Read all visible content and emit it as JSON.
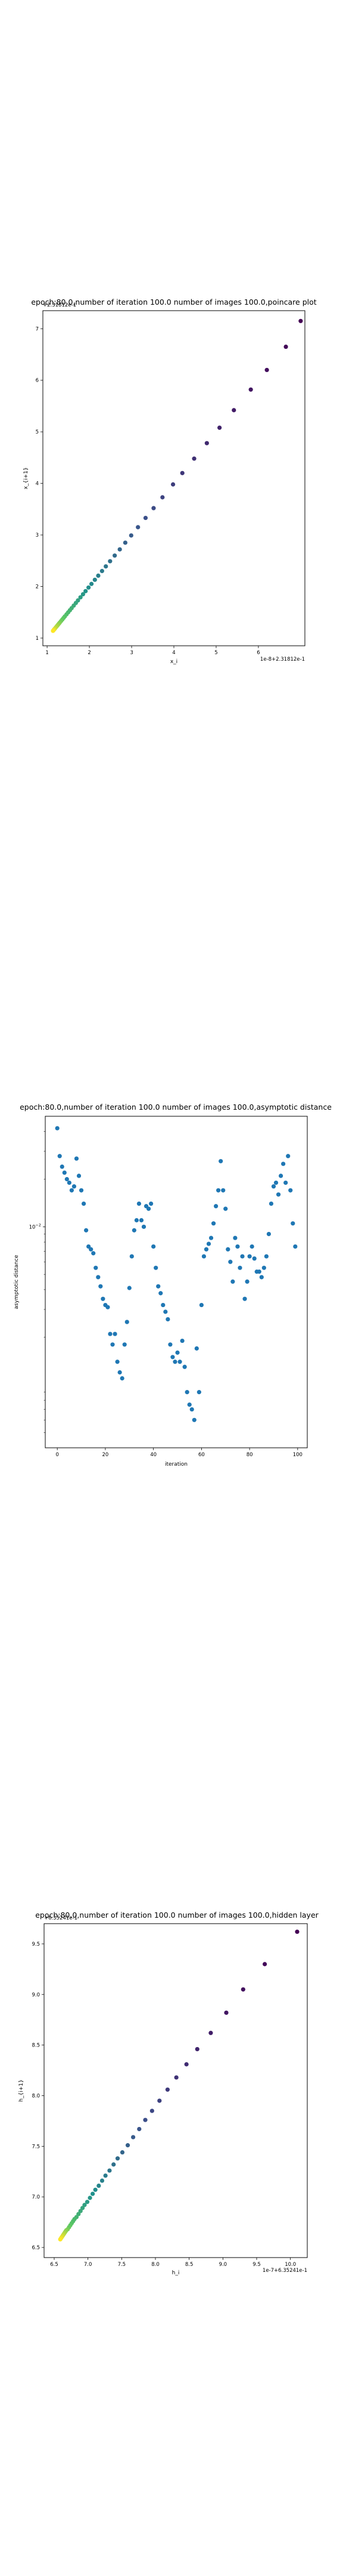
{
  "chart_data": [
    {
      "type": "scatter",
      "title": "epoch:80.0,number of iteration 100.0  number of images 100.0,poincare plot",
      "xlabel": "x_i",
      "ylabel": "x_{i+1}",
      "offset_text": "1e-8+2.31812e-1",
      "corner_text": "+2.31812e-1",
      "xlim": [
        0.9,
        7.1
      ],
      "ylim": [
        0.85,
        7.35
      ],
      "xticks": [
        "1",
        "2",
        "3",
        "4",
        "5",
        "6"
      ],
      "xtick_values": [
        1,
        2,
        3,
        4,
        5,
        6
      ],
      "yticks": [
        "1",
        "2",
        "3",
        "4",
        "5",
        "6",
        "7"
      ],
      "ytick_values": [
        1,
        2,
        3,
        4,
        5,
        6,
        7
      ],
      "colormap": [
        "#440154",
        "#3b528b",
        "#21918c",
        "#5ec962",
        "#fde725"
      ],
      "x": [
        7.0,
        6.65,
        6.2,
        5.82,
        5.42,
        5.08,
        4.78,
        4.48,
        4.2,
        3.98,
        3.73,
        3.52,
        3.33,
        3.15,
        2.99,
        2.85,
        2.72,
        2.6,
        2.49,
        2.39,
        2.3,
        2.21,
        2.13,
        2.05,
        1.98,
        1.91,
        1.85,
        1.79,
        1.73,
        1.68,
        1.63,
        1.58,
        1.54,
        1.5,
        1.46,
        1.42,
        1.39,
        1.36,
        1.33,
        1.3,
        1.28,
        1.26,
        1.24,
        1.22,
        1.2,
        1.18,
        1.17,
        1.16,
        1.15,
        1.14
      ],
      "y": [
        7.15,
        6.65,
        6.2,
        5.82,
        5.42,
        5.08,
        4.78,
        4.48,
        4.2,
        3.98,
        3.73,
        3.52,
        3.33,
        3.15,
        2.99,
        2.85,
        2.72,
        2.6,
        2.49,
        2.39,
        2.3,
        2.21,
        2.13,
        2.05,
        1.98,
        1.91,
        1.85,
        1.79,
        1.73,
        1.68,
        1.63,
        1.58,
        1.54,
        1.5,
        1.46,
        1.42,
        1.39,
        1.36,
        1.33,
        1.3,
        1.28,
        1.26,
        1.24,
        1.22,
        1.2,
        1.18,
        1.17,
        1.16,
        1.15,
        1.14
      ]
    },
    {
      "type": "scatter",
      "title": "epoch:80.0,number of iteration 100.0  number of images 100.0,asymptotic distance",
      "xlabel": "iteration",
      "ylabel": "asymptotic distance",
      "yscale": "log",
      "xlim": [
        -5,
        104
      ],
      "ylim": [
        0.0004,
        0.05
      ],
      "xticks": [
        "0",
        "20",
        "40",
        "60",
        "80",
        "100"
      ],
      "xtick_values": [
        0,
        20,
        40,
        60,
        80,
        100
      ],
      "yticks": [
        "10^{-2}"
      ],
      "ytick_values": [
        0.01
      ],
      "color": "#1f77b4",
      "x": [
        0,
        1,
        2,
        3,
        4,
        5,
        6,
        7,
        8,
        9,
        10,
        11,
        12,
        13,
        14,
        15,
        16,
        17,
        18,
        19,
        20,
        21,
        22,
        23,
        24,
        25,
        26,
        27,
        28,
        29,
        30,
        31,
        32,
        33,
        34,
        35,
        36,
        37,
        38,
        39,
        40,
        41,
        42,
        43,
        44,
        45,
        46,
        47,
        48,
        49,
        50,
        51,
        52,
        53,
        54,
        55,
        56,
        57,
        58,
        59,
        60,
        61,
        62,
        63,
        64,
        65,
        66,
        67,
        68,
        69,
        70,
        71,
        72,
        73,
        74,
        75,
        76,
        77,
        78,
        79,
        80,
        81,
        82,
        83,
        84,
        85,
        86,
        87,
        88,
        89,
        90,
        91,
        92,
        93,
        94,
        95,
        96,
        97,
        98,
        99
      ],
      "y": [
        0.042,
        0.028,
        0.024,
        0.022,
        0.02,
        0.019,
        0.017,
        0.018,
        0.027,
        0.021,
        0.017,
        0.014,
        0.0095,
        0.0075,
        0.0072,
        0.0068,
        0.0055,
        0.0048,
        0.0042,
        0.0035,
        0.0032,
        0.0031,
        0.0021,
        0.0018,
        0.0021,
        0.0014,
        0.0012,
        0.0011,
        0.0018,
        0.0025,
        0.0041,
        0.0065,
        0.0095,
        0.011,
        0.014,
        0.011,
        0.01,
        0.0135,
        0.013,
        0.014,
        0.0075,
        0.0055,
        0.0042,
        0.0038,
        0.0032,
        0.0029,
        0.0026,
        0.0018,
        0.0015,
        0.0014,
        0.0016,
        0.0014,
        0.0019,
        0.0013,
        0.0009,
        0.00075,
        0.0007,
        0.0006,
        0.0017,
        0.0009,
        0.0032,
        0.0065,
        0.0072,
        0.0078,
        0.0085,
        0.0105,
        0.0135,
        0.017,
        0.026,
        0.017,
        0.013,
        0.0072,
        0.006,
        0.0045,
        0.0085,
        0.0075,
        0.0055,
        0.0065,
        0.0035,
        0.0045,
        0.0065,
        0.0075,
        0.0063,
        0.0052,
        0.0052,
        0.0048,
        0.0055,
        0.0065,
        0.009,
        0.014,
        0.018,
        0.019,
        0.016,
        0.021,
        0.025,
        0.019,
        0.028,
        0.017,
        0.0105,
        0.0075
      ]
    },
    {
      "type": "scatter",
      "title": "epoch:80.0,number of iteration 100.0  number of images 100.0,hidden layer",
      "xlabel": "h_i",
      "ylabel": "h_{i+1}",
      "offset_text": "1e-7+6.35241e-1",
      "corner_text": "+6.35241e-1",
      "xlim": [
        6.35,
        10.25
      ],
      "ylim": [
        6.4,
        9.7
      ],
      "xticks": [
        "6.5",
        "7.0",
        "7.5",
        "8.0",
        "8.5",
        "9.0",
        "9.5",
        "10.0"
      ],
      "xtick_values": [
        6.5,
        7.0,
        7.5,
        8.0,
        8.5,
        9.0,
        9.5,
        10.0
      ],
      "yticks": [
        "6.5",
        "7.0",
        "7.5",
        "8.0",
        "8.5",
        "9.0",
        "9.5"
      ],
      "ytick_values": [
        6.5,
        7.0,
        7.5,
        8.0,
        8.5,
        9.0,
        9.5
      ],
      "colormap": [
        "#440154",
        "#3b528b",
        "#21918c",
        "#5ec962",
        "#fde725"
      ],
      "x": [
        10.1,
        9.62,
        9.3,
        9.05,
        8.82,
        8.62,
        8.46,
        8.31,
        8.18,
        8.06,
        7.95,
        7.85,
        7.76,
        7.67,
        7.59,
        7.51,
        7.44,
        7.38,
        7.32,
        7.26,
        7.21,
        7.16,
        7.11,
        7.07,
        7.03,
        6.99,
        6.95,
        6.92,
        6.89,
        6.86,
        6.83,
        6.8,
        6.78,
        6.76,
        6.74,
        6.72,
        6.7,
        6.68,
        6.67,
        6.66,
        6.65,
        6.64,
        6.63,
        6.62,
        6.61,
        6.6,
        6.59
      ],
      "y": [
        9.62,
        9.3,
        9.05,
        8.82,
        8.62,
        8.46,
        8.31,
        8.18,
        8.06,
        7.95,
        7.85,
        7.76,
        7.67,
        7.59,
        7.51,
        7.44,
        7.38,
        7.32,
        7.26,
        7.21,
        7.16,
        7.11,
        7.07,
        7.03,
        6.99,
        6.95,
        6.92,
        6.89,
        6.86,
        6.83,
        6.8,
        6.78,
        6.76,
        6.74,
        6.72,
        6.7,
        6.68,
        6.67,
        6.66,
        6.65,
        6.64,
        6.63,
        6.62,
        6.61,
        6.6,
        6.59,
        6.58
      ]
    }
  ]
}
